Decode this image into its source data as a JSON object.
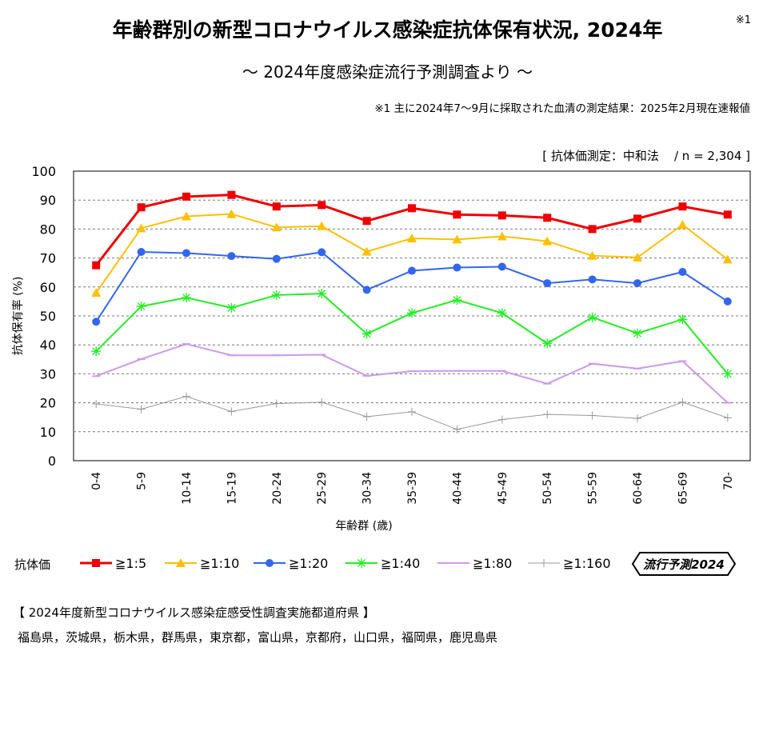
{
  "header": {
    "title": "年齢群別の新型コロナウイルス感染症抗体保有状況, 2024年",
    "footnote_mark": "※1",
    "subtitle": "～ 2024年度感染症流行予測調査より ～",
    "footnote": "※1  主に2024年7～9月に採取された血清の測定結果：2025年2月現在速報値",
    "method": "[ 抗体価測定：中和法    / n = 2,304 ]"
  },
  "legend": {
    "label": "抗体価",
    "badge": "流行予測2024"
  },
  "prefectures": {
    "title": "【 2024年度新型コロナウイルス感染症感受性調査実施都道府県 】",
    "list": "福島県，茨城県，栃木県，群馬県，東京都，富山県，京都府，山口県，福岡県，鹿児島県"
  },
  "chart_data": {
    "type": "line",
    "xlabel": "年齢群 (歳)",
    "ylabel": "抗体保有率 (%)",
    "ylim": [
      0,
      100
    ],
    "yticks": [
      0,
      10,
      20,
      30,
      40,
      50,
      60,
      70,
      80,
      90,
      100
    ],
    "grid": true,
    "legend_position": "bottom",
    "categories": [
      "0-4",
      "5-9",
      "10-14",
      "15-19",
      "20-24",
      "25-29",
      "30-34",
      "35-39",
      "40-44",
      "45-49",
      "50-54",
      "55-59",
      "60-64",
      "65-69",
      "70-"
    ],
    "series": [
      {
        "name": "≧1:5",
        "color": "#ee0000",
        "marker": "square",
        "values": [
          67.5,
          87.5,
          91.2,
          91.8,
          87.8,
          88.3,
          82.8,
          87.2,
          85.0,
          84.7,
          83.9,
          80.0,
          83.6,
          87.8,
          85.0
        ]
      },
      {
        "name": "≧1:10",
        "color": "#ffc000",
        "marker": "triangle",
        "values": [
          58.0,
          80.3,
          84.4,
          85.2,
          80.6,
          81.0,
          72.2,
          76.8,
          76.4,
          77.5,
          75.8,
          70.8,
          70.2,
          81.5,
          69.5
        ]
      },
      {
        "name": "≧1:20",
        "color": "#3366ee",
        "marker": "circle",
        "values": [
          48.0,
          72.1,
          71.7,
          70.7,
          69.7,
          72.0,
          59.0,
          65.6,
          66.7,
          67.0,
          61.3,
          62.6,
          61.3,
          65.2,
          55.0
        ]
      },
      {
        "name": "≧1:40",
        "color": "#22ee22",
        "marker": "asterisk",
        "values": [
          37.8,
          53.3,
          56.3,
          52.8,
          57.2,
          57.7,
          43.8,
          51.0,
          55.5,
          51.0,
          40.5,
          49.5,
          44.0,
          48.8,
          30.0
        ]
      },
      {
        "name": "≧1:80",
        "color": "#cc99ee",
        "marker": "dash",
        "values": [
          29.2,
          35.1,
          40.3,
          36.4,
          36.4,
          36.6,
          29.3,
          30.9,
          31.0,
          31.0,
          26.6,
          33.5,
          31.8,
          34.4,
          20.0
        ]
      },
      {
        "name": "≧1:160",
        "color": "#999999",
        "marker": "plus",
        "values": [
          19.6,
          17.8,
          22.2,
          17.0,
          19.7,
          20.2,
          15.2,
          16.9,
          10.8,
          14.2,
          16.0,
          15.6,
          14.6,
          20.2,
          14.8
        ]
      }
    ]
  }
}
